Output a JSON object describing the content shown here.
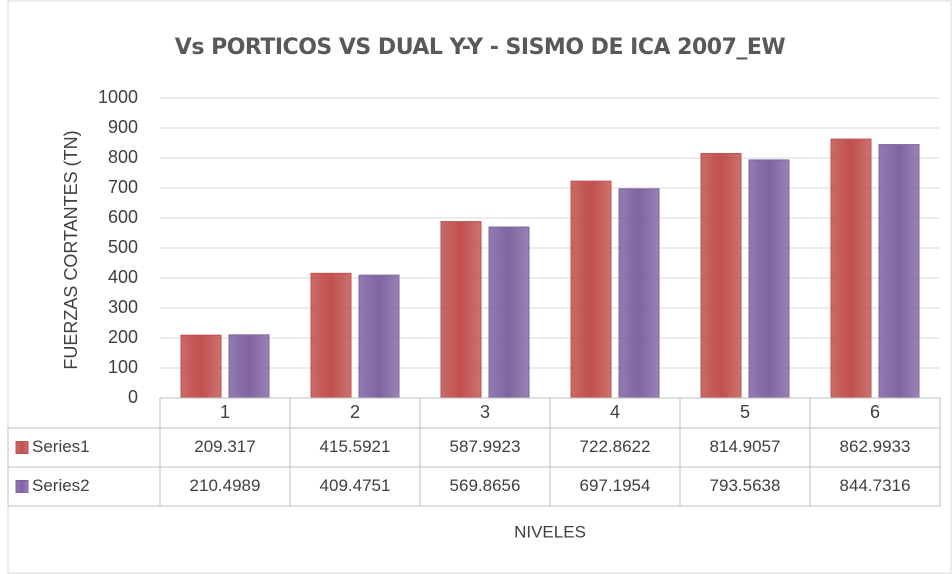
{
  "chart_data": {
    "type": "bar",
    "title": "Vs PORTICOS VS DUAL Y-Y - SISMO DE ICA 2007_EW",
    "x_label": "NIVELES",
    "y_label": "FUERZAS CORTANTES (TN)",
    "categories": [
      "1",
      "2",
      "3",
      "4",
      "5",
      "6"
    ],
    "series": [
      {
        "name": "Series1",
        "color": "#c0504d",
        "values": [
          209.317,
          415.5921,
          587.9923,
          722.8622,
          814.9057,
          862.9933
        ]
      },
      {
        "name": "Series2",
        "color": "#8064a2",
        "values": [
          210.4989,
          409.4751,
          569.8656,
          697.1954,
          793.5638,
          844.7316
        ]
      }
    ],
    "ylim": [
      0,
      1000
    ],
    "yticks": [
      0,
      100,
      200,
      300,
      400,
      500,
      600,
      700,
      800,
      900,
      1000
    ],
    "grid": true,
    "data_table": true
  }
}
